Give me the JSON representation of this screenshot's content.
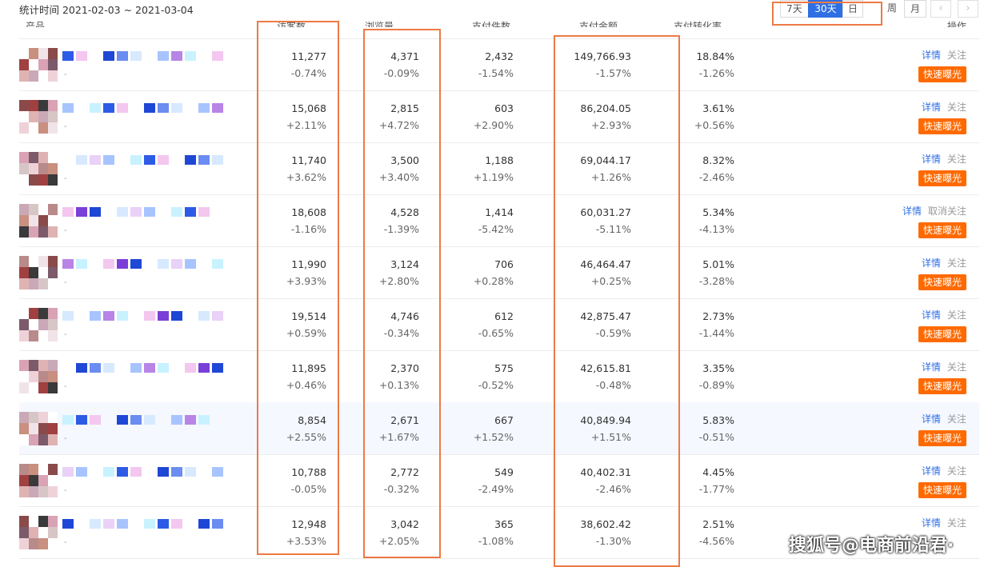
{
  "header": {
    "stat_period": "统计时间 2021-02-03 ~ 2021-03-04",
    "ranges": [
      "7天",
      "30天",
      "日"
    ],
    "active_range": "30天",
    "tab_week": "周",
    "tab_month": "月",
    "prev_icon": "‹",
    "next_icon": "›"
  },
  "columns": [
    "产品",
    "访客数",
    "浏览量",
    "支付件数",
    "支付金额",
    "支付转化率",
    "操作"
  ],
  "actions": {
    "detail": "详情",
    "follow": "关注",
    "unfollow": "取消关注",
    "boost": "快速曝光"
  },
  "rows": [
    {
      "visitors": "11,277",
      "visitors_delta": "-0.74%",
      "pv": "4,371",
      "pv_delta": "-0.09%",
      "orders": "2,432",
      "orders_delta": "-1.54%",
      "amount": "149,766.93",
      "amount_delta": "-1.57%",
      "rate": "18.84%",
      "rate_delta": "-1.26%",
      "follow_label": "关注"
    },
    {
      "visitors": "15,068",
      "visitors_delta": "+2.11%",
      "pv": "2,815",
      "pv_delta": "+4.72%",
      "orders": "603",
      "orders_delta": "+2.90%",
      "amount": "86,204.05",
      "amount_delta": "+2.93%",
      "rate": "3.61%",
      "rate_delta": "+0.56%",
      "follow_label": "关注"
    },
    {
      "visitors": "11,740",
      "visitors_delta": "+3.62%",
      "pv": "3,500",
      "pv_delta": "+3.40%",
      "orders": "1,188",
      "orders_delta": "+1.19%",
      "amount": "69,044.17",
      "amount_delta": "+1.26%",
      "rate": "8.32%",
      "rate_delta": "-2.46%",
      "follow_label": "关注"
    },
    {
      "visitors": "18,608",
      "visitors_delta": "-1.16%",
      "pv": "4,528",
      "pv_delta": "-1.39%",
      "orders": "1,414",
      "orders_delta": "-5.42%",
      "amount": "60,031.27",
      "amount_delta": "-5.11%",
      "rate": "5.34%",
      "rate_delta": "-4.13%",
      "follow_label": "取消关注"
    },
    {
      "visitors": "11,990",
      "visitors_delta": "+3.93%",
      "pv": "3,124",
      "pv_delta": "+2.80%",
      "orders": "706",
      "orders_delta": "+0.28%",
      "amount": "46,464.47",
      "amount_delta": "+0.25%",
      "rate": "5.01%",
      "rate_delta": "-3.28%",
      "follow_label": "关注"
    },
    {
      "visitors": "19,514",
      "visitors_delta": "+0.59%",
      "pv": "4,746",
      "pv_delta": "-0.34%",
      "orders": "612",
      "orders_delta": "-0.65%",
      "amount": "42,875.47",
      "amount_delta": "-0.59%",
      "rate": "2.73%",
      "rate_delta": "-1.44%",
      "follow_label": "关注"
    },
    {
      "visitors": "11,895",
      "visitors_delta": "+0.46%",
      "pv": "2,370",
      "pv_delta": "+0.13%",
      "orders": "575",
      "orders_delta": "-0.52%",
      "amount": "42,615.81",
      "amount_delta": "-0.48%",
      "rate": "3.35%",
      "rate_delta": "-0.89%",
      "follow_label": "关注"
    },
    {
      "visitors": "8,854",
      "visitors_delta": "+2.55%",
      "pv": "2,671",
      "pv_delta": "+1.67%",
      "orders": "667",
      "orders_delta": "+1.52%",
      "amount": "40,849.94",
      "amount_delta": "+1.51%",
      "rate": "5.83%",
      "rate_delta": "-0.51%",
      "follow_label": "关注"
    },
    {
      "visitors": "10,788",
      "visitors_delta": "-0.05%",
      "pv": "2,772",
      "pv_delta": "-0.32%",
      "orders": "549",
      "orders_delta": "-2.49%",
      "amount": "40,402.31",
      "amount_delta": "-2.46%",
      "rate": "4.45%",
      "rate_delta": "-1.77%",
      "follow_label": "关注"
    },
    {
      "visitors": "12,948",
      "visitors_delta": "+3.53%",
      "pv": "3,042",
      "pv_delta": "+2.05%",
      "orders": "365",
      "orders_delta": "-1.08%",
      "amount": "38,602.42",
      "amount_delta": "-1.30%",
      "rate": "2.51%",
      "rate_delta": "-4.56%",
      "follow_label": "关注"
    }
  ],
  "watermark": "搜狐号@电商前沿君·",
  "colors": {
    "accent": "#2f6fe4",
    "boost": "#ff6a00",
    "highlight": "#ee7a45"
  }
}
